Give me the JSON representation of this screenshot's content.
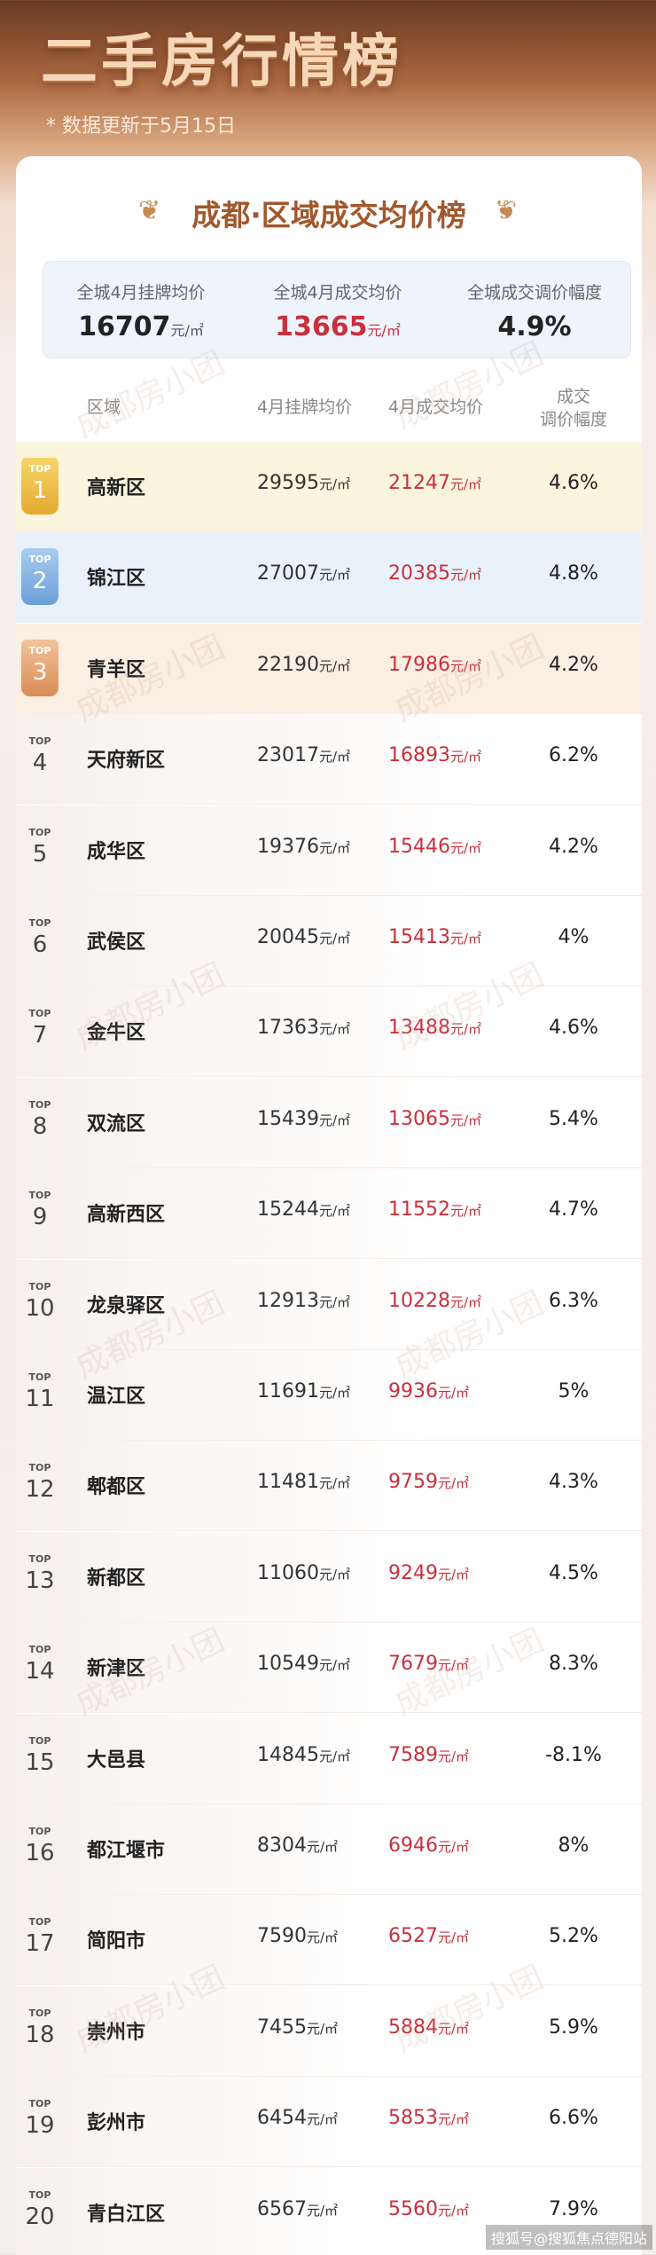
{
  "header": {
    "title": "二手房行情榜",
    "subtitle": "* 数据更新于5月15日"
  },
  "card": {
    "title": "成都·区域成交均价榜",
    "watermark": "成都房小团"
  },
  "summary": [
    {
      "label": "全城4月挂牌均价",
      "value": "16707",
      "unit": "元/㎡"
    },
    {
      "label": "全城4月成交均价",
      "value": "13665",
      "unit": "元/㎡"
    },
    {
      "label": "全城成交调价幅度",
      "value": "4.9%",
      "unit": ""
    }
  ],
  "columns": {
    "district": "区域",
    "listing": "4月挂牌均价",
    "deal": "4月成交均价",
    "adjust_line1": "成交",
    "adjust_line2": "调价幅度"
  },
  "unit": "元/㎡",
  "top_label": "TOP",
  "rows": [
    {
      "rank": "1",
      "district": "高新区",
      "listing": "29595",
      "deal": "21247",
      "adjust": "4.6%"
    },
    {
      "rank": "2",
      "district": "锦江区",
      "listing": "27007",
      "deal": "20385",
      "adjust": "4.8%"
    },
    {
      "rank": "3",
      "district": "青羊区",
      "listing": "22190",
      "deal": "17986",
      "adjust": "4.2%"
    },
    {
      "rank": "4",
      "district": "天府新区",
      "listing": "23017",
      "deal": "16893",
      "adjust": "6.2%"
    },
    {
      "rank": "5",
      "district": "成华区",
      "listing": "19376",
      "deal": "15446",
      "adjust": "4.2%"
    },
    {
      "rank": "6",
      "district": "武侯区",
      "listing": "20045",
      "deal": "15413",
      "adjust": "4%"
    },
    {
      "rank": "7",
      "district": "金牛区",
      "listing": "17363",
      "deal": "13488",
      "adjust": "4.6%"
    },
    {
      "rank": "8",
      "district": "双流区",
      "listing": "15439",
      "deal": "13065",
      "adjust": "5.4%"
    },
    {
      "rank": "9",
      "district": "高新西区",
      "listing": "15244",
      "deal": "11552",
      "adjust": "4.7%"
    },
    {
      "rank": "10",
      "district": "龙泉驿区",
      "listing": "12913",
      "deal": "10228",
      "adjust": "6.3%"
    },
    {
      "rank": "11",
      "district": "温江区",
      "listing": "11691",
      "deal": "9936",
      "adjust": "5%"
    },
    {
      "rank": "12",
      "district": "郫都区",
      "listing": "11481",
      "deal": "9759",
      "adjust": "4.3%"
    },
    {
      "rank": "13",
      "district": "新都区",
      "listing": "11060",
      "deal": "9249",
      "adjust": "4.5%"
    },
    {
      "rank": "14",
      "district": "新津区",
      "listing": "10549",
      "deal": "7679",
      "adjust": "8.3%"
    },
    {
      "rank": "15",
      "district": "大邑县",
      "listing": "14845",
      "deal": "7589",
      "adjust": "-8.1%"
    },
    {
      "rank": "16",
      "district": "都江堰市",
      "listing": "8304",
      "deal": "6946",
      "adjust": "8%"
    },
    {
      "rank": "17",
      "district": "简阳市",
      "listing": "7590",
      "deal": "6527",
      "adjust": "5.2%"
    },
    {
      "rank": "18",
      "district": "崇州市",
      "listing": "7455",
      "deal": "5884",
      "adjust": "5.9%"
    },
    {
      "rank": "19",
      "district": "彭州市",
      "listing": "6454",
      "deal": "5853",
      "adjust": "6.6%"
    },
    {
      "rank": "20",
      "district": "青白江区",
      "listing": "6567",
      "deal": "5560",
      "adjust": "7.9%"
    }
  ],
  "credit": "搜狐号@搜狐焦点德阳站"
}
